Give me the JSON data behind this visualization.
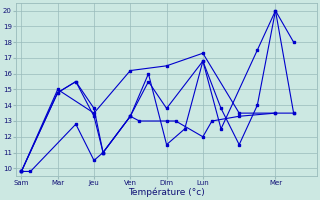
{
  "xlabel": "Température (°c)",
  "background_color": "#cce8e2",
  "grid_color": "#99bbbb",
  "line_color": "#0000cc",
  "ylim": [
    9.5,
    20.5
  ],
  "xlim": [
    -0.3,
    16.3
  ],
  "yticks": [
    10,
    11,
    12,
    13,
    14,
    15,
    16,
    17,
    18,
    19,
    20
  ],
  "day_labels": [
    "Sam",
    "Mar",
    "Jeu",
    "Ven",
    "Dim",
    "Lun",
    "Mer"
  ],
  "day_positions": [
    0,
    2,
    4,
    6,
    8,
    10,
    14
  ],
  "lines": [
    {
      "x": [
        0,
        0.5,
        3,
        4,
        4.5,
        6,
        6.5,
        8,
        8.5,
        10,
        10.5,
        12,
        14
      ],
      "y": [
        9.8,
        9.8,
        12.8,
        10.5,
        11.0,
        13.3,
        13.0,
        13.0,
        13.0,
        12.0,
        13.0,
        13.3,
        13.5
      ]
    },
    {
      "x": [
        0,
        2,
        3,
        4,
        4.5,
        6,
        7,
        8,
        10,
        11,
        13,
        14,
        15
      ],
      "y": [
        9.8,
        14.8,
        15.5,
        13.8,
        11.0,
        13.3,
        15.5,
        13.8,
        16.8,
        12.5,
        17.5,
        20.0,
        13.5
      ]
    },
    {
      "x": [
        0,
        2,
        3,
        4,
        4.5,
        6,
        7,
        8,
        9,
        10,
        11,
        12,
        13,
        14,
        15
      ],
      "y": [
        9.8,
        14.8,
        15.5,
        13.3,
        11.0,
        13.3,
        16.0,
        11.5,
        12.5,
        16.8,
        13.8,
        11.5,
        14.0,
        20.0,
        18.0
      ]
    },
    {
      "x": [
        0,
        2,
        4,
        6,
        8,
        10,
        12,
        14,
        15
      ],
      "y": [
        9.8,
        15.0,
        13.5,
        16.2,
        16.5,
        17.3,
        13.5,
        13.5,
        13.5
      ]
    }
  ]
}
